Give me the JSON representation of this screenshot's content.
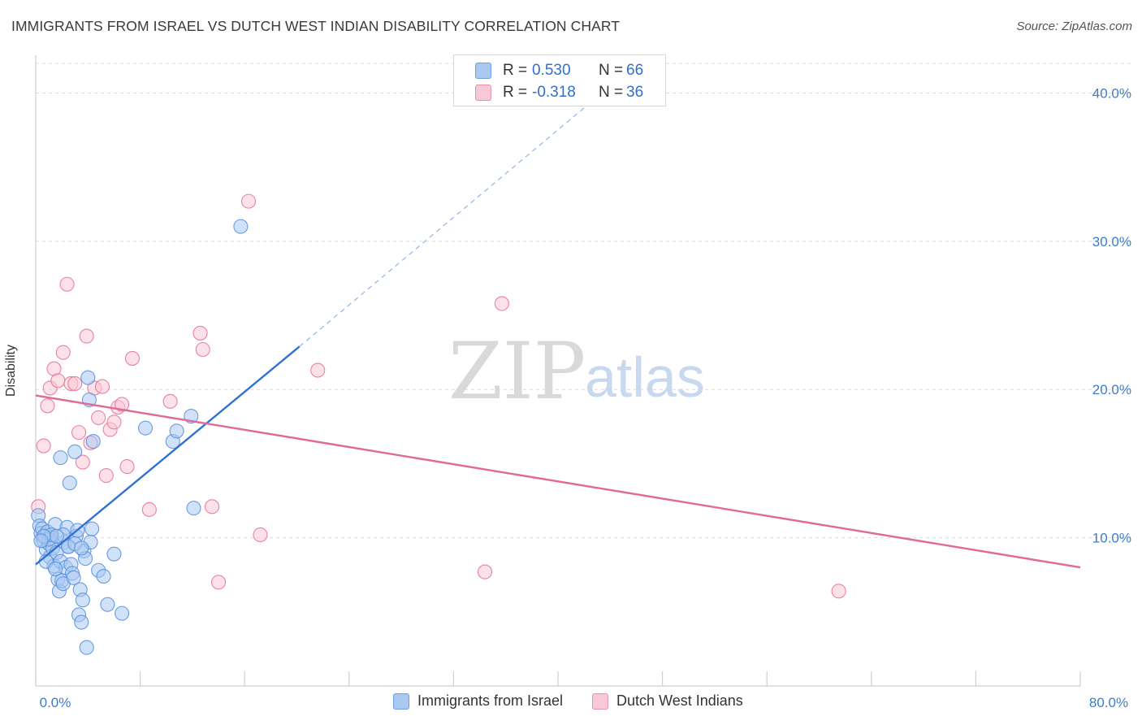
{
  "header": {
    "title": "IMMIGRANTS FROM ISRAEL VS DUTCH WEST INDIAN DISABILITY CORRELATION CHART",
    "source": "Source: ZipAtlas.com"
  },
  "watermark": {
    "zip": "ZIP",
    "atlas": "atlas"
  },
  "legend": {
    "rows": [
      {
        "r_label": "R =",
        "r_value": "0.530",
        "n_label": "N =",
        "n_value": "66",
        "color": "#a9c8f2",
        "border": "#6a9fe0"
      },
      {
        "r_label": "R =",
        "r_value": "-0.318",
        "n_label": "N =",
        "n_value": "36",
        "color": "#f9c8d6",
        "border": "#ec8fab"
      }
    ]
  },
  "bottom_legend": {
    "items": [
      {
        "label": "Immigrants from Israel",
        "color": "#a9c8f2",
        "border": "#6a9fe0"
      },
      {
        "label": "Dutch West Indians",
        "color": "#f9c8d6",
        "border": "#ec8fab"
      }
    ]
  },
  "chart_data": {
    "type": "scatter",
    "title": "IMMIGRANTS FROM ISRAEL VS DUTCH WEST INDIAN DISABILITY CORRELATION CHART",
    "xlabel": "",
    "ylabel": "Disability",
    "xlim": [
      0,
      80
    ],
    "ylim": [
      0,
      42
    ],
    "x_tick_labels": [
      {
        "value": 0,
        "label": "0.0%"
      },
      {
        "value": 80,
        "label": "80.0%"
      }
    ],
    "y_tick_labels": [
      {
        "value": 10,
        "label": "10.0%"
      },
      {
        "value": 20,
        "label": "20.0%"
      },
      {
        "value": 30,
        "label": "30.0%"
      },
      {
        "value": 40,
        "label": "40.0%"
      }
    ],
    "grid": true,
    "legend_position": "top-center",
    "series": [
      {
        "name": "Immigrants from Israel",
        "color": "#5b93db",
        "fill": "#a9c8f2",
        "trend": {
          "x": [
            0,
            20.2
          ],
          "y": [
            8.2,
            22.9
          ],
          "dashed_to": [
            42,
            39.0
          ]
        },
        "points": [
          [
            0.2,
            11.5
          ],
          [
            0.3,
            10.8
          ],
          [
            0.4,
            10.3
          ],
          [
            0.5,
            10.6
          ],
          [
            0.6,
            9.8
          ],
          [
            0.7,
            10.1
          ],
          [
            0.8,
            9.2
          ],
          [
            0.9,
            10.4
          ],
          [
            1.0,
            9.6
          ],
          [
            1.1,
            8.7
          ],
          [
            1.2,
            10.0
          ],
          [
            1.3,
            9.3
          ],
          [
            1.4,
            8.1
          ],
          [
            1.5,
            10.9
          ],
          [
            1.6,
            9.0
          ],
          [
            1.7,
            7.2
          ],
          [
            1.8,
            6.4
          ],
          [
            1.9,
            8.4
          ],
          [
            2.0,
            7.1
          ],
          [
            2.1,
            6.9
          ],
          [
            2.2,
            9.7
          ],
          [
            2.3,
            8.0
          ],
          [
            2.4,
            10.7
          ],
          [
            2.5,
            9.4
          ],
          [
            2.6,
            13.7
          ],
          [
            2.7,
            8.2
          ],
          [
            2.8,
            7.6
          ],
          [
            2.9,
            7.3
          ],
          [
            3.0,
            15.8
          ],
          [
            3.1,
            10.1
          ],
          [
            3.2,
            10.5
          ],
          [
            3.3,
            4.8
          ],
          [
            3.4,
            6.5
          ],
          [
            3.5,
            4.3
          ],
          [
            3.6,
            5.8
          ],
          [
            3.7,
            9.1
          ],
          [
            3.8,
            8.6
          ],
          [
            3.9,
            2.6
          ],
          [
            4.0,
            20.8
          ],
          [
            4.1,
            19.3
          ],
          [
            4.2,
            9.7
          ],
          [
            4.3,
            10.6
          ],
          [
            4.4,
            16.5
          ],
          [
            4.8,
            7.8
          ],
          [
            5.2,
            7.4
          ],
          [
            5.5,
            5.5
          ],
          [
            6.0,
            8.9
          ],
          [
            6.6,
            4.9
          ],
          [
            1.9,
            15.4
          ],
          [
            2.1,
            10.2
          ],
          [
            8.4,
            17.4
          ],
          [
            10.5,
            16.5
          ],
          [
            10.8,
            17.2
          ],
          [
            11.9,
            18.2
          ],
          [
            12.1,
            12.0
          ],
          [
            15.7,
            31.0
          ],
          [
            0.8,
            8.4
          ],
          [
            1.0,
            9.9
          ],
          [
            1.2,
            10.2
          ],
          [
            1.5,
            7.9
          ],
          [
            1.6,
            10.1
          ],
          [
            2.5,
            9.4
          ],
          [
            3.0,
            9.6
          ],
          [
            3.5,
            9.3
          ],
          [
            0.6,
            10.1
          ],
          [
            0.4,
            9.8
          ]
        ]
      },
      {
        "name": "Dutch West Indians",
        "color": "#e8749a",
        "fill": "#f9c8d6",
        "trend": {
          "x": [
            0,
            80
          ],
          "y": [
            19.6,
            8.0
          ]
        },
        "points": [
          [
            0.2,
            12.1
          ],
          [
            0.6,
            16.2
          ],
          [
            0.9,
            18.9
          ],
          [
            1.1,
            20.1
          ],
          [
            1.4,
            21.4
          ],
          [
            1.7,
            20.6
          ],
          [
            2.1,
            22.5
          ],
          [
            2.4,
            27.1
          ],
          [
            2.7,
            20.4
          ],
          [
            3.0,
            20.4
          ],
          [
            3.3,
            17.1
          ],
          [
            3.6,
            15.1
          ],
          [
            3.9,
            23.6
          ],
          [
            4.2,
            16.4
          ],
          [
            4.5,
            20.1
          ],
          [
            4.8,
            18.1
          ],
          [
            5.1,
            20.2
          ],
          [
            5.4,
            14.2
          ],
          [
            5.7,
            17.3
          ],
          [
            6.0,
            17.8
          ],
          [
            6.3,
            18.8
          ],
          [
            6.6,
            19.0
          ],
          [
            7.0,
            14.8
          ],
          [
            7.4,
            22.1
          ],
          [
            8.7,
            11.9
          ],
          [
            10.3,
            19.2
          ],
          [
            12.6,
            23.8
          ],
          [
            12.8,
            22.7
          ],
          [
            13.5,
            12.1
          ],
          [
            14.0,
            7.0
          ],
          [
            16.3,
            32.7
          ],
          [
            17.2,
            10.2
          ],
          [
            21.6,
            21.3
          ],
          [
            34.4,
            7.7
          ],
          [
            35.7,
            25.8
          ],
          [
            61.5,
            6.4
          ]
        ]
      }
    ]
  }
}
